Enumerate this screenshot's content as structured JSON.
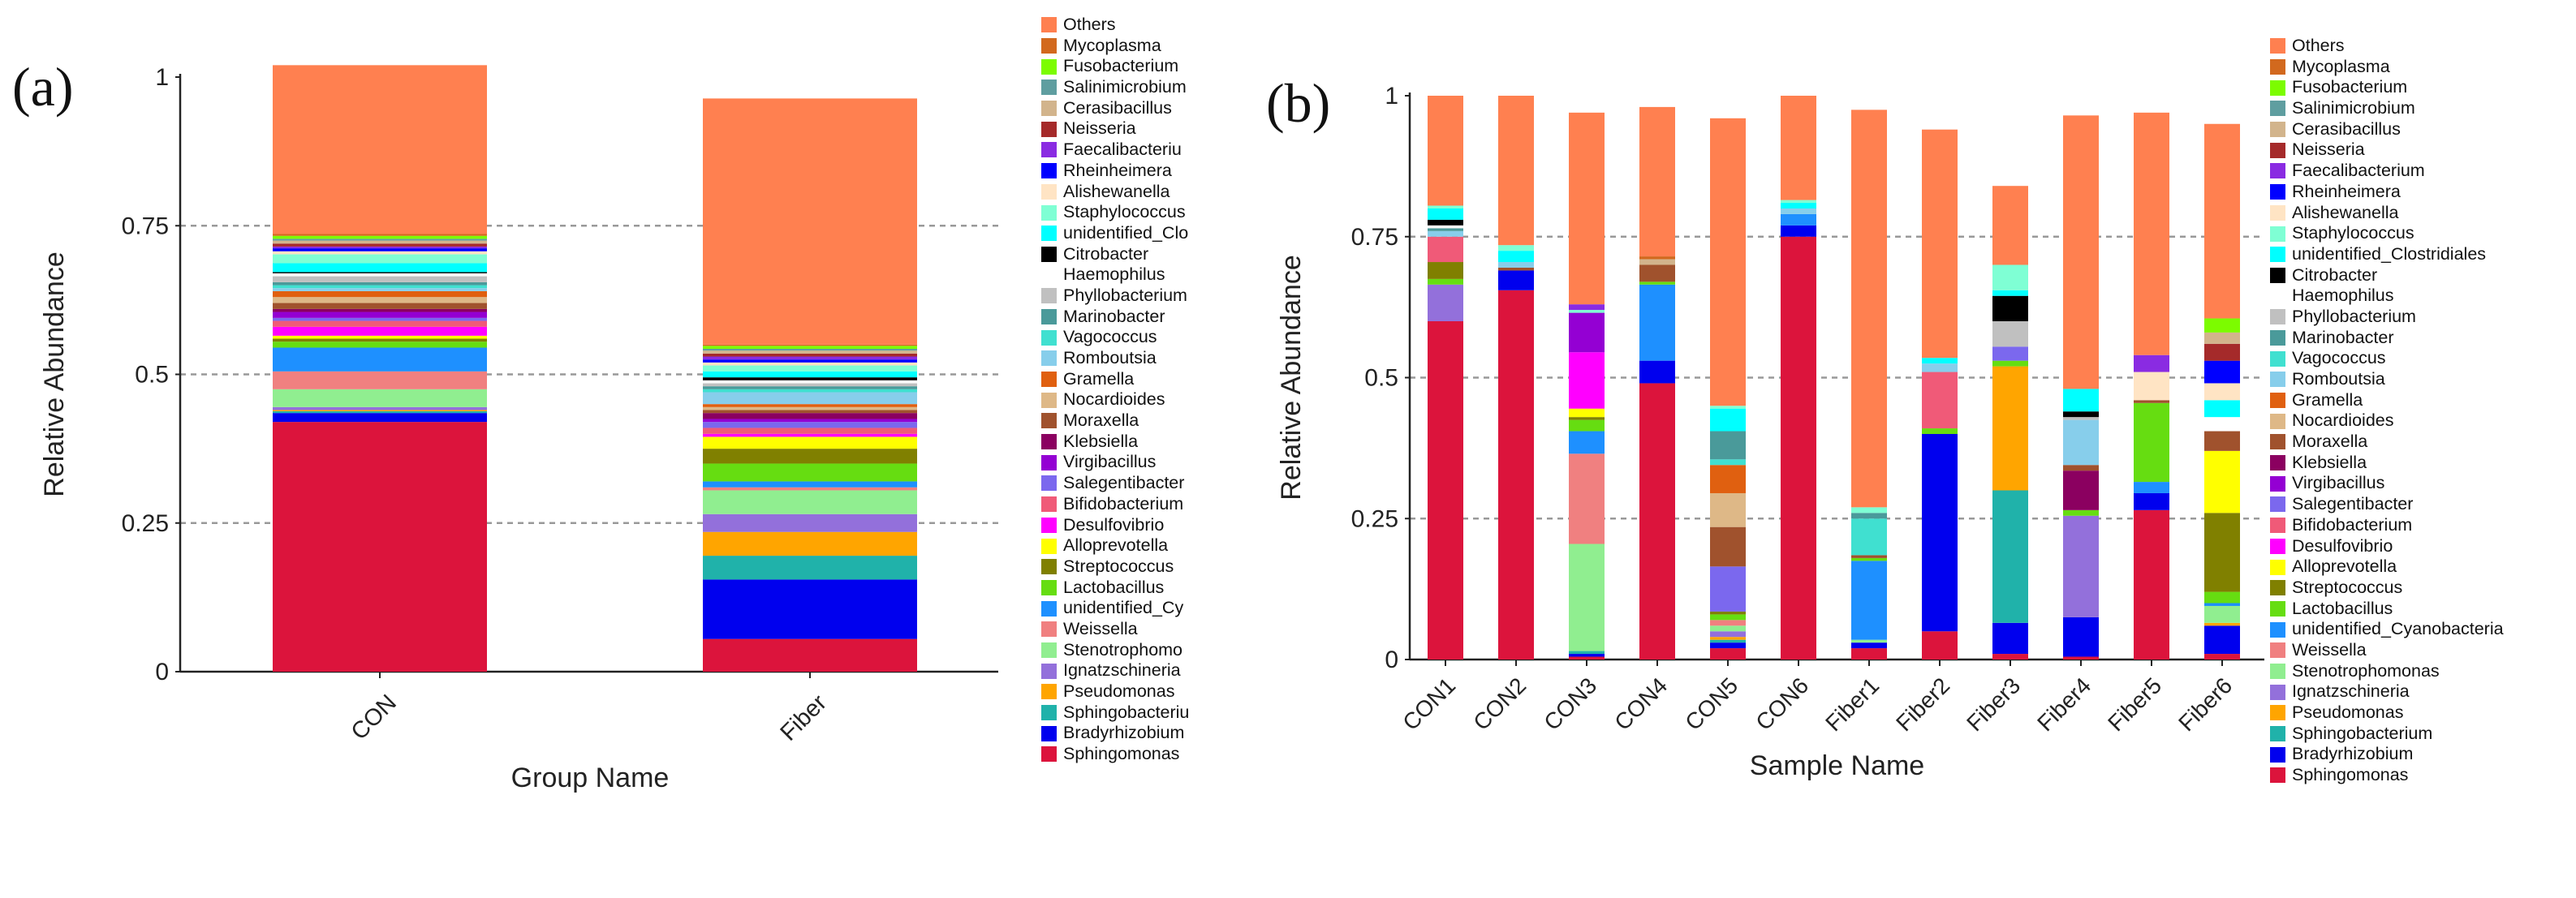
{
  "colors": {
    "Others": "#FF8050",
    "Mycoplasma": "#D2691E",
    "Fusobacterium": "#7CFC00",
    "Salinimicrobium": "#5F9EA0",
    "Cerasibacillus": "#D2B48C",
    "Neisseria": "#A52A2A",
    "Faecalibacterium": "#8A2BE2",
    "Rheinheimera": "#0000FF",
    "Alishewanella": "#FFE4C4",
    "Staphylococcus": "#7FFFD4",
    "unidentified_Clostridiales": "#00FFFF",
    "Citrobacter": "#000000",
    "Haemophilus": "#FFFFFF",
    "Phyllobacterium": "#C0C0C0",
    "Marinobacter": "#4A9A9A",
    "Vagococcus": "#40E0D0",
    "Romboutsia": "#87CEEB",
    "Gramella": "#E06010",
    "Nocardioides": "#DEB887",
    "Moraxella": "#A0522D",
    "Klebsiella": "#8B0060",
    "Virgibacillus": "#9400D3",
    "Salegentibacter": "#7B68EE",
    "Bifidobacterium": "#F05A78",
    "Desulfovibrio": "#FF00FF",
    "Alloprevotella": "#FFFF00",
    "Streptococcus": "#808000",
    "Lactobacillus": "#66DD11",
    "unidentified_Cyanobacteria": "#1E90FF",
    "Weissella": "#F08080",
    "Stenotrophomonas": "#90EE90",
    "Ignatzschineria": "#9370DB",
    "Pseudomonas": "#FFA500",
    "Sphingobacterium": "#20B2AA",
    "Bradyrhizobium": "#0000EE",
    "Sphingomonas": "#DC143C"
  },
  "chart_data": [
    {
      "panel_label": "(a)",
      "type": "bar",
      "stacked": true,
      "xlabel": "Group Name",
      "ylabel": "Relative Abundance",
      "ylim": [
        0,
        1
      ],
      "yticks": [
        "0",
        "0.25",
        "0.5",
        "0.75",
        "1"
      ],
      "categories": [
        "CON",
        "Fiber"
      ],
      "legend": [
        "Others",
        "Mycoplasma",
        "Fusobacterium",
        "Salinimicrobium",
        "Cerasibacillus",
        "Neisseria",
        "Faecalibacteriu",
        "Rheinheimera",
        "Alishewanella",
        "Staphylococcus",
        "unidentified_Clo",
        "Citrobacter",
        "Haemophilus",
        "Phyllobacterium",
        "Marinobacter",
        "Vagococcus",
        "Romboutsia",
        "Gramella",
        "Nocardioides",
        "Moraxella",
        "Klebsiella",
        "Virgibacillus",
        "Salegentibacter",
        "Bifidobacterium",
        "Desulfovibrio",
        "Alloprevotella",
        "Streptococcus",
        "Lactobacillus",
        "unidentified_Cy",
        "Weissella",
        "Stenotrophomo",
        "Ignatzschineria",
        "Pseudomonas",
        "Sphingobacteriu",
        "Bradyrhizobium",
        "Sphingomonas"
      ],
      "series": [
        {
          "name": "Sphingomonas",
          "values": [
            0.42,
            0.055
          ]
        },
        {
          "name": "Bradyrhizobium",
          "values": [
            0.015,
            0.1
          ]
        },
        {
          "name": "Sphingobacterium",
          "values": [
            0.003,
            0.04
          ]
        },
        {
          "name": "Pseudomonas",
          "values": [
            0.002,
            0.04
          ]
        },
        {
          "name": "Ignatzschineria",
          "values": [
            0.005,
            0.03
          ]
        },
        {
          "name": "Stenotrophomonas",
          "values": [
            0.03,
            0.04
          ]
        },
        {
          "name": "Weissella",
          "values": [
            0.03,
            0.005
          ]
        },
        {
          "name": "unidentified_Cyanobacteria",
          "values": [
            0.04,
            0.01
          ]
        },
        {
          "name": "Lactobacillus",
          "values": [
            0.01,
            0.03
          ]
        },
        {
          "name": "Streptococcus",
          "values": [
            0.005,
            0.025
          ]
        },
        {
          "name": "Alloprevotella",
          "values": [
            0.005,
            0.02
          ]
        },
        {
          "name": "Desulfovibrio",
          "values": [
            0.015,
            0.005
          ]
        },
        {
          "name": "Bifidobacterium",
          "values": [
            0.01,
            0.01
          ]
        },
        {
          "name": "Salegentibacter",
          "values": [
            0.005,
            0.01
          ]
        },
        {
          "name": "Virgibacillus",
          "values": [
            0.01,
            0.005
          ]
        },
        {
          "name": "Klebsiella",
          "values": [
            0.005,
            0.01
          ]
        },
        {
          "name": "Moraxella",
          "values": [
            0.01,
            0.005
          ]
        },
        {
          "name": "Nocardioides",
          "values": [
            0.01,
            0.005
          ]
        },
        {
          "name": "Gramella",
          "values": [
            0.01,
            0.005
          ]
        },
        {
          "name": "Romboutsia",
          "values": [
            0.005,
            0.02
          ]
        },
        {
          "name": "Vagococcus",
          "values": [
            0.005,
            0.005
          ]
        },
        {
          "name": "Marinobacter",
          "values": [
            0.005,
            0.005
          ]
        },
        {
          "name": "Phyllobacterium",
          "values": [
            0.01,
            0.005
          ]
        },
        {
          "name": "Haemophilus",
          "values": [
            0.005,
            0.005
          ]
        },
        {
          "name": "Citrobacter",
          "values": [
            0.002,
            0.005
          ]
        },
        {
          "name": "unidentified_Clostridiales",
          "values": [
            0.015,
            0.01
          ]
        },
        {
          "name": "Staphylococcus",
          "values": [
            0.015,
            0.01
          ]
        },
        {
          "name": "Alishewanella",
          "values": [
            0.005,
            0.005
          ]
        },
        {
          "name": "Rheinheimera",
          "values": [
            0.005,
            0.005
          ]
        },
        {
          "name": "Faecalibacterium",
          "values": [
            0.003,
            0.005
          ]
        },
        {
          "name": "Neisseria",
          "values": [
            0.005,
            0.005
          ]
        },
        {
          "name": "Cerasibacillus",
          "values": [
            0.005,
            0.005
          ]
        },
        {
          "name": "Salinimicrobium",
          "values": [
            0.003,
            0.003
          ]
        },
        {
          "name": "Fusobacterium",
          "values": [
            0.005,
            0.005
          ]
        },
        {
          "name": "Mycoplasma",
          "values": [
            0.003,
            0.002
          ]
        },
        {
          "name": "Others",
          "values": [
            0.284,
            0.414
          ]
        }
      ]
    },
    {
      "panel_label": "(b)",
      "type": "bar",
      "stacked": true,
      "xlabel": "Sample Name",
      "ylabel": "Relative Abundance",
      "ylim": [
        0,
        1
      ],
      "yticks": [
        "0",
        "0.25",
        "0.5",
        "0.75",
        "1"
      ],
      "categories": [
        "CON1",
        "CON2",
        "CON3",
        "CON4",
        "CON5",
        "CON6",
        "Fiber1",
        "Fiber2",
        "Fiber3",
        "Fiber4",
        "Fiber5",
        "Fiber6"
      ],
      "legend": [
        "Others",
        "Mycoplasma",
        "Fusobacterium",
        "Salinimicrobium",
        "Cerasibacillus",
        "Neisseria",
        "Faecalibacterium",
        "Rheinheimera",
        "Alishewanella",
        "Staphylococcus",
        "unidentified_Clostridiales",
        "Citrobacter",
        "Haemophilus",
        "Phyllobacterium",
        "Marinobacter",
        "Vagococcus",
        "Romboutsia",
        "Gramella",
        "Nocardioides",
        "Moraxella",
        "Klebsiella",
        "Virgibacillus",
        "Salegentibacter",
        "Bifidobacterium",
        "Desulfovibrio",
        "Alloprevotella",
        "Streptococcus",
        "Lactobacillus",
        "unidentified_Cyanobacteria",
        "Weissella",
        "Stenotrophomonas",
        "Ignatzschineria",
        "Pseudomonas",
        "Sphingobacterium",
        "Bradyrhizobium",
        "Sphingomonas"
      ],
      "series": [
        {
          "name": "Sphingomonas",
          "values": [
            0.6,
            0.655,
            0.005,
            0.49,
            0.02,
            0.75,
            0.02,
            0.05,
            0.01,
            0.005,
            0.265,
            0.01
          ]
        },
        {
          "name": "Bradyrhizobium",
          "values": [
            0,
            0.035,
            0.005,
            0.04,
            0.01,
            0.02,
            0.01,
            0.35,
            0.055,
            0.07,
            0.03,
            0.05
          ]
        },
        {
          "name": "Sphingobacterium",
          "values": [
            0,
            0,
            0.005,
            0,
            0.005,
            0,
            0,
            0,
            0.235,
            0,
            0,
            0
          ]
        },
        {
          "name": "Pseudomonas",
          "values": [
            0,
            0,
            0,
            0,
            0.005,
            0,
            0,
            0,
            0.22,
            0,
            0,
            0.005
          ]
        },
        {
          "name": "Ignatzschineria",
          "values": [
            0.065,
            0,
            0,
            0,
            0.01,
            0,
            0,
            0,
            0,
            0.18,
            0,
            0
          ]
        },
        {
          "name": "Stenotrophomonas",
          "values": [
            0,
            0,
            0.19,
            0,
            0.01,
            0,
            0.005,
            0,
            0,
            0,
            0,
            0.03
          ]
        },
        {
          "name": "Weissella",
          "values": [
            0,
            0,
            0.16,
            0,
            0.01,
            0,
            0,
            0,
            0,
            0,
            0,
            0
          ]
        },
        {
          "name": "unidentified_Cyanobacteria",
          "values": [
            0,
            0,
            0.04,
            0.135,
            0,
            0.02,
            0.14,
            0,
            0,
            0,
            0.02,
            0.005
          ]
        },
        {
          "name": "Lactobacillus",
          "values": [
            0.01,
            0,
            0.02,
            0.005,
            0.01,
            0,
            0.005,
            0.01,
            0.01,
            0.01,
            0.14,
            0.02
          ]
        },
        {
          "name": "Streptococcus",
          "values": [
            0.03,
            0,
            0.005,
            0,
            0.005,
            0,
            0,
            0,
            0,
            0,
            0,
            0.14
          ]
        },
        {
          "name": "Alloprevotella",
          "values": [
            0,
            0,
            0.015,
            0,
            0,
            0,
            0,
            0,
            0,
            0,
            0,
            0.11
          ]
        },
        {
          "name": "Desulfovibrio",
          "values": [
            0,
            0,
            0.1,
            0,
            0,
            0,
            0,
            0,
            0,
            0,
            0,
            0
          ]
        },
        {
          "name": "Bifidobacterium",
          "values": [
            0.045,
            0,
            0,
            0,
            0,
            0,
            0,
            0.1,
            0,
            0,
            0,
            0
          ]
        },
        {
          "name": "Salegentibacter",
          "values": [
            0,
            0,
            0,
            0,
            0.08,
            0,
            0,
            0,
            0.025,
            0,
            0,
            0
          ]
        },
        {
          "name": "Virgibacillus",
          "values": [
            0,
            0,
            0.07,
            0,
            0,
            0,
            0,
            0,
            0,
            0,
            0,
            0
          ]
        },
        {
          "name": "Klebsiella",
          "values": [
            0,
            0,
            0,
            0,
            0,
            0,
            0,
            0,
            0,
            0.07,
            0,
            0
          ]
        },
        {
          "name": "Moraxella",
          "values": [
            0,
            0.005,
            0,
            0.03,
            0.07,
            0,
            0.005,
            0,
            0,
            0.01,
            0.005,
            0.035
          ]
        },
        {
          "name": "Nocardioides",
          "values": [
            0,
            0,
            0,
            0,
            0.06,
            0,
            0,
            0,
            0,
            0,
            0,
            0
          ]
        },
        {
          "name": "Gramella",
          "values": [
            0,
            0,
            0,
            0,
            0.05,
            0,
            0,
            0,
            0,
            0,
            0,
            0
          ]
        },
        {
          "name": "Romboutsia",
          "values": [
            0.01,
            0.01,
            0,
            0,
            0,
            0.01,
            0,
            0.015,
            0,
            0.08,
            0,
            0
          ]
        },
        {
          "name": "Vagococcus",
          "values": [
            0,
            0,
            0,
            0,
            0.01,
            0,
            0.065,
            0,
            0,
            0,
            0,
            0
          ]
        },
        {
          "name": "Marinobacter",
          "values": [
            0.005,
            0,
            0,
            0,
            0.05,
            0,
            0.01,
            0,
            0,
            0,
            0,
            0
          ]
        },
        {
          "name": "Phyllobacterium",
          "values": [
            0,
            0,
            0,
            0,
            0,
            0,
            0,
            0,
            0.045,
            0.005,
            0,
            0
          ]
        },
        {
          "name": "Haemophilus",
          "values": [
            0.005,
            0,
            0,
            0,
            0,
            0,
            0,
            0,
            0,
            0,
            0,
            0.025
          ]
        },
        {
          "name": "Citrobacter",
          "values": [
            0.01,
            0,
            0,
            0,
            0,
            0,
            0,
            0,
            0.045,
            0.01,
            0,
            0
          ]
        },
        {
          "name": "unidentified_Clostridiales",
          "values": [
            0.02,
            0.02,
            0,
            0,
            0.04,
            0.01,
            0,
            0.01,
            0.01,
            0.04,
            0,
            0.03
          ]
        },
        {
          "name": "Staphylococcus",
          "values": [
            0.005,
            0.01,
            0.005,
            0,
            0.005,
            0.005,
            0.01,
            0,
            0.045,
            0,
            0,
            0
          ]
        },
        {
          "name": "Alishewanella",
          "values": [
            0,
            0,
            0,
            0,
            0,
            0,
            0,
            0,
            0,
            0,
            0.05,
            0.03
          ]
        },
        {
          "name": "Rheinheimera",
          "values": [
            0,
            0,
            0,
            0,
            0,
            0,
            0,
            0,
            0,
            0,
            0,
            0.04
          ]
        },
        {
          "name": "Faecalibacterium",
          "values": [
            0,
            0,
            0.01,
            0,
            0,
            0,
            0,
            0,
            0,
            0,
            0.03,
            0
          ]
        },
        {
          "name": "Neisseria",
          "values": [
            0,
            0,
            0,
            0,
            0,
            0,
            0,
            0,
            0,
            0,
            0,
            0.03
          ]
        },
        {
          "name": "Cerasibacillus",
          "values": [
            0,
            0,
            0,
            0.01,
            0,
            0,
            0,
            0,
            0,
            0,
            0,
            0.02
          ]
        },
        {
          "name": "Salinimicrobium",
          "values": [
            0,
            0,
            0,
            0,
            0,
            0,
            0,
            0,
            0,
            0,
            0,
            0
          ]
        },
        {
          "name": "Fusobacterium",
          "values": [
            0,
            0,
            0,
            0,
            0,
            0,
            0,
            0,
            0,
            0,
            0,
            0.025
          ]
        },
        {
          "name": "Mycoplasma",
          "values": [
            0,
            0,
            0,
            0.005,
            0,
            0,
            0,
            0,
            0,
            0,
            0,
            0
          ]
        },
        {
          "name": "Others",
          "values": [
            0.195,
            0.265,
            0.34,
            0.265,
            0.51,
            0.185,
            0.705,
            0.405,
            0.14,
            0.485,
            0.43,
            0.345
          ]
        }
      ]
    }
  ]
}
